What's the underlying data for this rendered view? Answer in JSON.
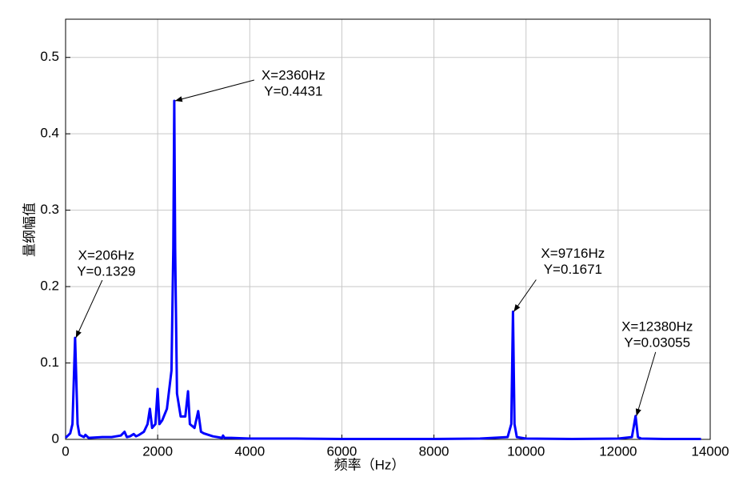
{
  "chart_data": {
    "type": "line",
    "x_label": "频率（Hz）",
    "y_label": "量纲幅值",
    "xlim": [
      0,
      14000
    ],
    "ylim": [
      0,
      0.55
    ],
    "xticks": [
      0,
      2000,
      4000,
      6000,
      8000,
      10000,
      12000,
      14000
    ],
    "yticks": [
      0,
      0.1,
      0.2,
      0.3,
      0.4,
      0.5
    ],
    "grid": true,
    "series": [
      {
        "color": "#0000ff",
        "x": [
          0,
          100,
          150,
          206,
          260,
          300,
          400,
          430,
          500,
          800,
          1000,
          1200,
          1280,
          1330,
          1400,
          1480,
          1530,
          1600,
          1700,
          1780,
          1830,
          1880,
          1950,
          2000,
          2040,
          2100,
          2200,
          2300,
          2340,
          2360,
          2380,
          2420,
          2500,
          2600,
          2660,
          2700,
          2800,
          2880,
          2940,
          3000,
          3200,
          3400,
          3420,
          3450,
          3600,
          4000,
          5000,
          6000,
          8000,
          9000,
          9600,
          9680,
          9716,
          9750,
          9800,
          10000,
          11000,
          12000,
          12300,
          12380,
          12430,
          12500,
          13000,
          13800
        ],
        "values": [
          0.002,
          0.008,
          0.02,
          0.1329,
          0.02,
          0.006,
          0.003,
          0.006,
          0.002,
          0.003,
          0.003,
          0.005,
          0.01,
          0.003,
          0.004,
          0.007,
          0.004,
          0.006,
          0.01,
          0.02,
          0.04,
          0.015,
          0.02,
          0.066,
          0.02,
          0.025,
          0.04,
          0.09,
          0.25,
          0.4431,
          0.25,
          0.06,
          0.03,
          0.03,
          0.063,
          0.02,
          0.015,
          0.037,
          0.01,
          0.008,
          0.004,
          0.002,
          0.005,
          0.002,
          0.002,
          0.001,
          0.001,
          0.0005,
          0.0005,
          0.001,
          0.003,
          0.02,
          0.1671,
          0.02,
          0.003,
          0.001,
          0.0005,
          0.001,
          0.003,
          0.03055,
          0.003,
          0.001,
          0.0005,
          0.0005
        ]
      }
    ],
    "annotations": [
      {
        "x": 206,
        "y": 0.1329,
        "lines": [
          "X=206Hz",
          "Y=0.1329"
        ]
      },
      {
        "x": 2360,
        "y": 0.4431,
        "lines": [
          "X=2360Hz",
          "Y=0.4431"
        ]
      },
      {
        "x": 9716,
        "y": 0.1671,
        "lines": [
          "X=9716Hz",
          "Y=0.1671"
        ]
      },
      {
        "x": 12380,
        "y": 0.03055,
        "lines": [
          "X=12380Hz",
          "Y=0.03055"
        ]
      }
    ]
  }
}
